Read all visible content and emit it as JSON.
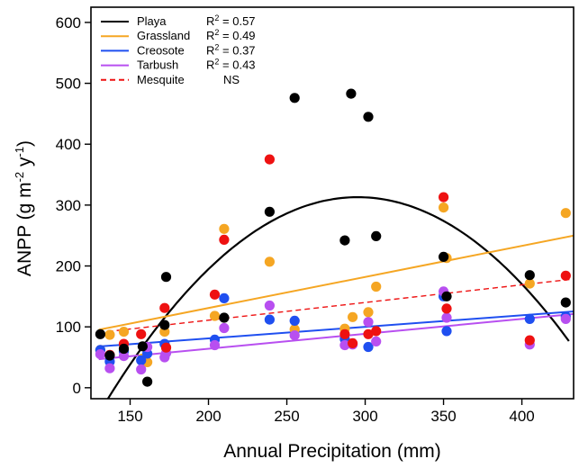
{
  "chart_data": {
    "type": "scatter",
    "xlabel": "Annual Precipitation (mm)",
    "ylabel_main": "ANPP (g m",
    "ylabel_sup1": "-2",
    "ylabel_mid": " y",
    "ylabel_sup2": "-1",
    "ylabel_end": ")",
    "xlim": [
      125,
      433
    ],
    "ylim": [
      -18,
      625
    ],
    "xticks": [
      150,
      200,
      250,
      300,
      350,
      400
    ],
    "yticks": [
      0,
      100,
      200,
      300,
      400,
      500,
      600
    ],
    "grid": false,
    "legend_position": "top-left",
    "series": [
      {
        "name": "Playa",
        "color": "#000000",
        "dash": "solid",
        "r2_label": "R",
        "r2_sup": "2",
        "r2_value": " = 0.57",
        "points": [
          [
            131,
            88
          ],
          [
            137,
            53
          ],
          [
            146,
            64
          ],
          [
            158,
            68
          ],
          [
            161,
            10
          ],
          [
            172,
            103
          ],
          [
            173,
            182
          ],
          [
            210,
            115
          ],
          [
            239,
            289
          ],
          [
            255,
            476
          ],
          [
            287,
            242
          ],
          [
            291,
            483
          ],
          [
            302,
            445
          ],
          [
            307,
            249
          ],
          [
            350,
            215
          ],
          [
            352,
            150
          ],
          [
            405,
            185
          ],
          [
            428,
            140
          ]
        ],
        "fit": {
          "kind": "quadratic",
          "a": -0.01302,
          "b": 7.689,
          "c": -822.2,
          "x_start": 130,
          "x_end": 430
        }
      },
      {
        "name": "Grassland",
        "color": "#f5a623",
        "dash": "solid",
        "r2_label": "R",
        "r2_sup": "2",
        "r2_value": " = 0.49",
        "points": [
          [
            131,
            62
          ],
          [
            137,
            87
          ],
          [
            146,
            92
          ],
          [
            158,
            48
          ],
          [
            161,
            42
          ],
          [
            172,
            92
          ],
          [
            173,
            66
          ],
          [
            204,
            118
          ],
          [
            210,
            261
          ],
          [
            239,
            207
          ],
          [
            255,
            96
          ],
          [
            287,
            97
          ],
          [
            292,
            116
          ],
          [
            302,
            124
          ],
          [
            307,
            166
          ],
          [
            350,
            296
          ],
          [
            352,
            213
          ],
          [
            405,
            171
          ],
          [
            428,
            287
          ]
        ],
        "fit": {
          "kind": "linear",
          "slope": 0.51,
          "intercept": 29,
          "x_start": 130,
          "x_end": 433
        }
      },
      {
        "name": "Creosote",
        "color": "#1f4ff0",
        "dash": "solid",
        "r2_label": "R",
        "r2_sup": "2",
        "r2_value": " = 0.37",
        "points": [
          [
            131,
            62
          ],
          [
            137,
            43
          ],
          [
            146,
            60
          ],
          [
            157,
            45
          ],
          [
            161,
            56
          ],
          [
            172,
            72
          ],
          [
            204,
            79
          ],
          [
            210,
            147
          ],
          [
            239,
            112
          ],
          [
            255,
            110
          ],
          [
            287,
            80
          ],
          [
            302,
            67
          ],
          [
            350,
            150
          ],
          [
            352,
            93
          ],
          [
            405,
            113
          ],
          [
            428,
            117
          ]
        ],
        "fit": {
          "kind": "linear",
          "slope": 0.19,
          "intercept": 43,
          "x_start": 130,
          "x_end": 433
        }
      },
      {
        "name": "Tarbush",
        "color": "#b84ff0",
        "dash": "solid",
        "r2_label": "R",
        "r2_sup": "2",
        "r2_value": " = 0.43",
        "points": [
          [
            131,
            55
          ],
          [
            137,
            32
          ],
          [
            146,
            52
          ],
          [
            157,
            30
          ],
          [
            161,
            67
          ],
          [
            172,
            50
          ],
          [
            173,
            57
          ],
          [
            204,
            70
          ],
          [
            210,
            98
          ],
          [
            239,
            135
          ],
          [
            255,
            86
          ],
          [
            287,
            70
          ],
          [
            292,
            71
          ],
          [
            302,
            108
          ],
          [
            307,
            76
          ],
          [
            350,
            158
          ],
          [
            352,
            115
          ],
          [
            405,
            71
          ],
          [
            428,
            113
          ]
        ],
        "fit": {
          "kind": "linear",
          "slope": 0.245,
          "intercept": 15,
          "x_start": 130,
          "x_end": 433
        }
      },
      {
        "name": "Mesquite",
        "color": "#ee1111",
        "dash": "dashed",
        "r2_label": "",
        "r2_sup": "",
        "r2_value": "NS",
        "points": [
          [
            137,
            54
          ],
          [
            146,
            72
          ],
          [
            157,
            88
          ],
          [
            172,
            131
          ],
          [
            173,
            66
          ],
          [
            204,
            153
          ],
          [
            210,
            243
          ],
          [
            239,
            375
          ],
          [
            287,
            88
          ],
          [
            292,
            73
          ],
          [
            302,
            88
          ],
          [
            307,
            93
          ],
          [
            350,
            313
          ],
          [
            352,
            130
          ],
          [
            405,
            78
          ],
          [
            428,
            184
          ]
        ],
        "fit": {
          "kind": "linear",
          "slope": 0.29,
          "intercept": 53,
          "x_start": 130,
          "x_end": 433
        }
      }
    ]
  }
}
